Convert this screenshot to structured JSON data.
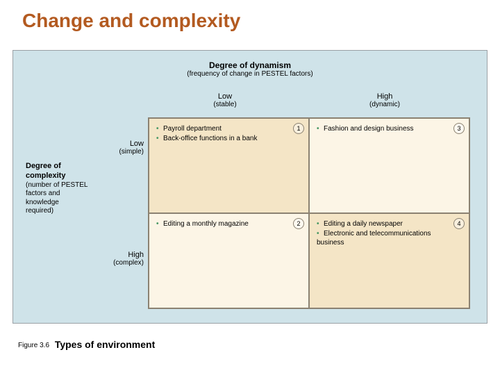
{
  "title": "Change and complexity",
  "title_color": "#b35a20",
  "panel": {
    "bg": "#cfe3e9",
    "border": "#9aa0a5"
  },
  "matrix_style": {
    "border": "#8b8272",
    "cell_bg_diag": "#f4e5c6",
    "cell_bg_off": "#fcf5e6",
    "bullet_color": "#4a9966",
    "font_size_pt": 10
  },
  "x_axis": {
    "title": "Degree of dynamism",
    "subtitle": "(frequency of change in PESTEL factors)",
    "low": {
      "label": "Low",
      "sub": "(stable)"
    },
    "high": {
      "label": "High",
      "sub": "(dynamic)"
    }
  },
  "y_axis": {
    "title": "Degree of complexity",
    "subtitle": "(number of PESTEL factors and knowledge required)",
    "low": {
      "label": "Low",
      "sub": "(simple)"
    },
    "high": {
      "label": "High",
      "sub": "(complex)"
    }
  },
  "cells": {
    "q1": {
      "num": "1",
      "items": [
        "Payroll department",
        "Back-office functions in a bank"
      ]
    },
    "q2": {
      "num": "3",
      "items": [
        "Fashion and design business"
      ]
    },
    "q3": {
      "num": "2",
      "items": [
        "Editing a monthly magazine"
      ]
    },
    "q4": {
      "num": "4",
      "items": [
        "Editing a daily newspaper",
        "Electronic and telecommunications business"
      ]
    }
  },
  "caption": {
    "fig": "Figure 3.6",
    "text": "Types of environment"
  }
}
